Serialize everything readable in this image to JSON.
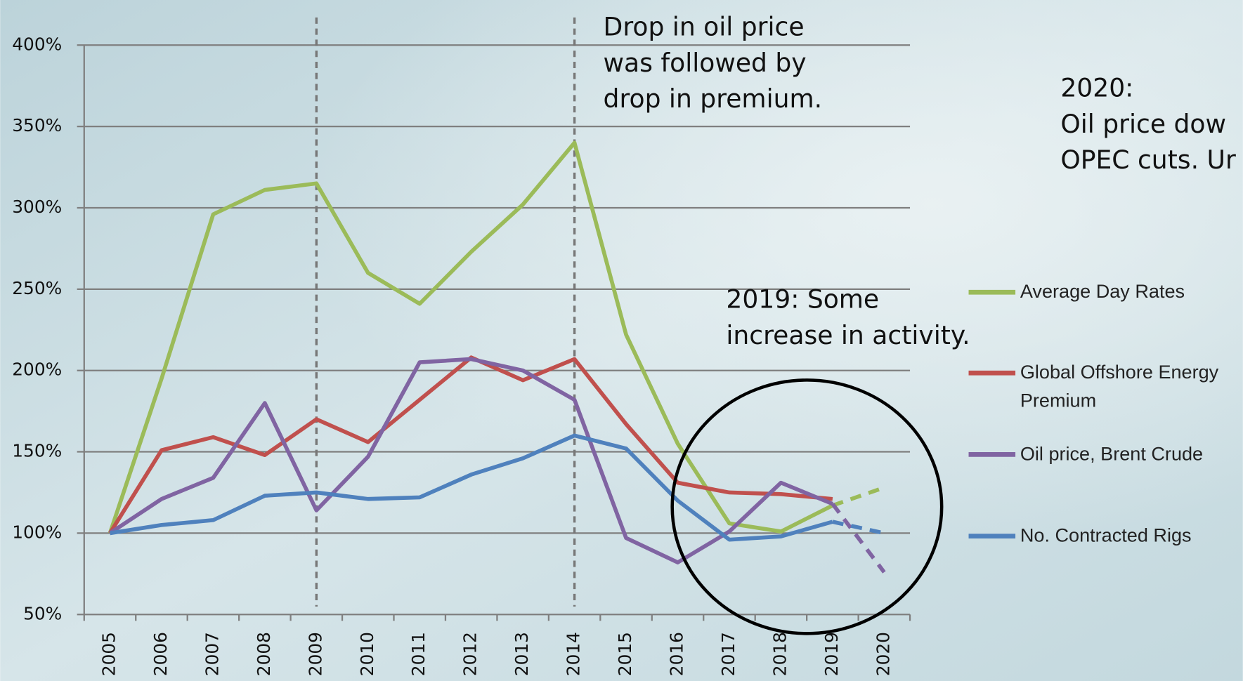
{
  "chart_data": {
    "type": "line",
    "categories": [
      "2005",
      "2006",
      "2007",
      "2008",
      "2009",
      "2010",
      "2011",
      "2012",
      "2013",
      "2014",
      "2015",
      "2016",
      "2017",
      "2018",
      "2019",
      "2020"
    ],
    "series": [
      {
        "name": "Average Day Rates",
        "color": "#9bbb59",
        "dash_last_segment": true,
        "values": [
          100,
          195,
          296,
          311,
          315,
          260,
          241,
          273,
          302,
          340,
          222,
          155,
          106,
          101,
          117,
          128
        ]
      },
      {
        "name": "Global Offshore Energy Premium",
        "color": "#c0504d",
        "dash_last_segment": false,
        "values": [
          100,
          151,
          159,
          148,
          170,
          156,
          182,
          208,
          194,
          207,
          167,
          131,
          125,
          124,
          121,
          null
        ]
      },
      {
        "name": "Oil price, Brent Crude",
        "color": "#8064a2",
        "dash_last_segment": true,
        "values": [
          100,
          121,
          134,
          180,
          114,
          147,
          205,
          207,
          200,
          182,
          97,
          82,
          101,
          131,
          118,
          76
        ]
      },
      {
        "name": "No. Contracted Rigs",
        "color": "#4f81bd",
        "dash_last_segment": true,
        "values": [
          100,
          105,
          108,
          123,
          125,
          121,
          122,
          136,
          146,
          160,
          152,
          120,
          96,
          98,
          107,
          100
        ]
      }
    ],
    "ylim": [
      50,
      400
    ],
    "yticks": [
      {
        "value": 50,
        "label": "50%"
      },
      {
        "value": 100,
        "label": "100%"
      },
      {
        "value": 150,
        "label": "150%"
      },
      {
        "value": 200,
        "label": "200%"
      },
      {
        "value": 250,
        "label": "250%"
      },
      {
        "value": 300,
        "label": "300%"
      },
      {
        "value": 350,
        "label": "350%"
      },
      {
        "value": 400,
        "label": "400%"
      }
    ],
    "grid": true,
    "vlines": [
      "2009",
      "2014"
    ],
    "annotations": [
      {
        "lines": [
          "Drop in oil price",
          "was followed by",
          "drop in premium."
        ]
      },
      {
        "lines": [
          "2019: Some",
          "increase in activity."
        ]
      },
      {
        "lines": [
          "2020:",
          "Oil price dow",
          "OPEC cuts. Ur"
        ]
      }
    ],
    "legend": "right"
  }
}
